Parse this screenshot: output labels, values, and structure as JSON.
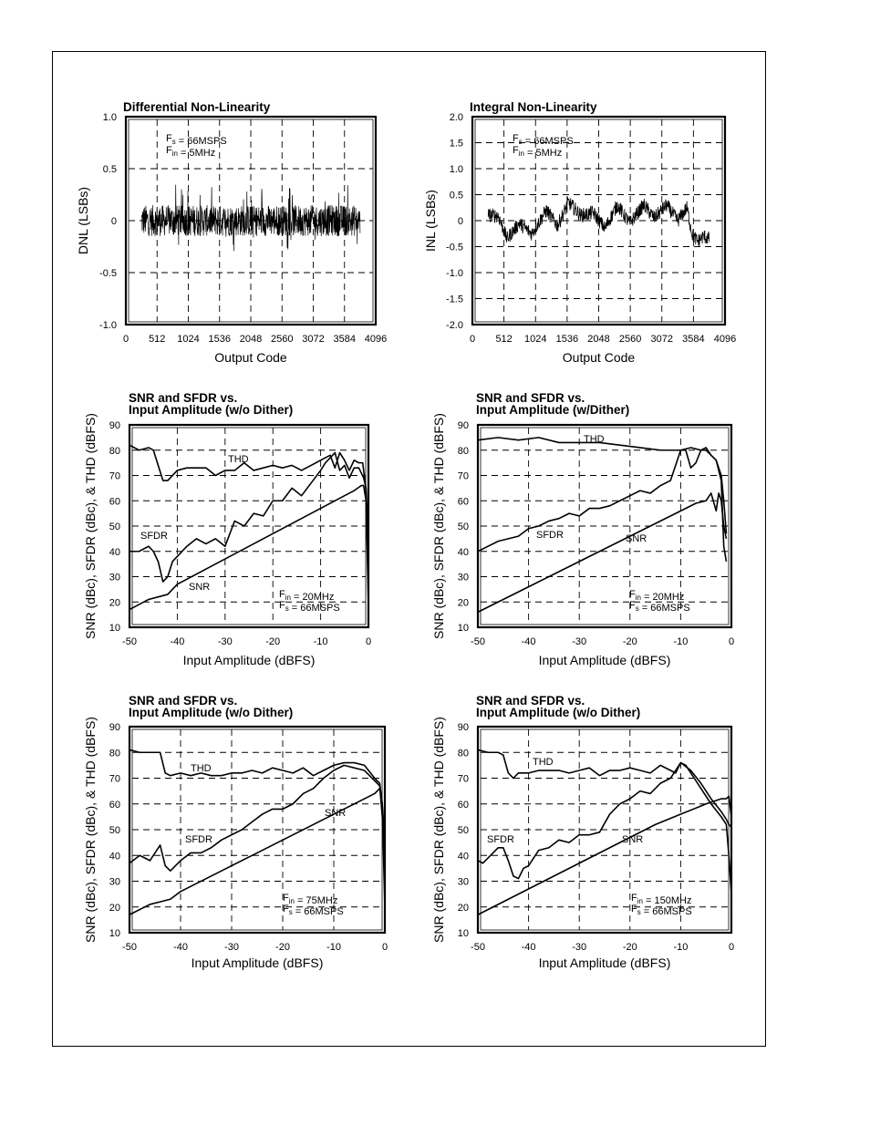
{
  "chart_data": [
    {
      "type": "line",
      "title": "Differential Non-Linearity",
      "xlabel": "Output Code",
      "ylabel": "DNL (LSBs)",
      "xlim": [
        0,
        4096
      ],
      "ylim": [
        -1.0,
        1.0
      ],
      "xticks": [
        "0",
        "512",
        "1024",
        "1536",
        "2048",
        "2560",
        "3072",
        "3584",
        "4096"
      ],
      "yticks": [
        "1.0",
        "0.5",
        "0",
        "-0.5",
        "-1.0"
      ],
      "annotations": [
        "F<sub>s</sub> = 66MSPS",
        "F<sub>in</sub> = 5MHz"
      ],
      "grid": true,
      "series": [
        {
          "style": "noise",
          "x_range": [
            256,
            3840
          ],
          "center": 0,
          "band": [
            -0.15,
            0.15
          ],
          "peak": [
            -0.3,
            0.35
          ]
        }
      ]
    },
    {
      "type": "line",
      "title": "Integral Non-Linearity",
      "xlabel": "Output Code",
      "ylabel": "INL (LSBs)",
      "xlim": [
        0,
        4096
      ],
      "ylim": [
        -2.0,
        2.0
      ],
      "xticks": [
        "0",
        "512",
        "1024",
        "1536",
        "2048",
        "2560",
        "3072",
        "3584",
        "4096"
      ],
      "yticks": [
        "2.0",
        "1.5",
        "1.0",
        "0.5",
        "0",
        "-0.5",
        "-1.0",
        "-1.5",
        "-2.0"
      ],
      "annotations": [
        "F<sub>s</sub> = 66MSPS",
        "F<sub>in</sub> = 5MHz"
      ],
      "grid": true,
      "series": [
        {
          "style": "noisy",
          "x": [
            256,
            420,
            560,
            760,
            960,
            1200,
            1380,
            1560,
            1760,
            1960,
            2150,
            2350,
            2550,
            2780,
            2950,
            3150,
            3330,
            3480,
            3560,
            3650,
            3750,
            3840
          ],
          "y": [
            0.1,
            0.1,
            -0.35,
            -0.05,
            -0.25,
            0.2,
            -0.1,
            0.35,
            0.1,
            0.15,
            -0.15,
            0.3,
            -0.05,
            0.3,
            0.05,
            0.3,
            0.0,
            0.25,
            -0.25,
            -0.4,
            -0.3,
            -0.35
          ]
        }
      ]
    },
    {
      "type": "line",
      "title": "SNR and SFDR vs.\nInput Amplitude (w/o Dither)",
      "xlabel": "Input Amplitude (dBFS)",
      "ylabel": "SNR (dBc), SFDR (dBc), & THD (dBFS)",
      "xlim": [
        -50,
        0
      ],
      "ylim": [
        10,
        90
      ],
      "xticks": [
        "-50",
        "-40",
        "-30",
        "-20",
        "-10",
        "0"
      ],
      "yticks": [
        "90",
        "80",
        "70",
        "60",
        "50",
        "40",
        "30",
        "20",
        "10"
      ],
      "annotations": [
        "F<sub>in</sub> = 20MHz",
        "F<sub>s</sub> = 66MSPS"
      ],
      "grid": true,
      "series": [
        {
          "name": "THD",
          "x": [
            -50,
            -48,
            -46,
            -45,
            -44,
            -43,
            -42,
            -40,
            -38,
            -36,
            -34,
            -32,
            -30,
            -28,
            -26,
            -24,
            -22,
            -20,
            -18,
            -16,
            -14,
            -12,
            -10,
            -8,
            -7,
            -6,
            -5,
            -4,
            -3,
            -2,
            -1.2,
            -0.6,
            -0.3,
            0
          ],
          "y": [
            82,
            80,
            81,
            80,
            74,
            68,
            68,
            72,
            73,
            73,
            73,
            70,
            72,
            72,
            75,
            72,
            73,
            74,
            73,
            74,
            72,
            74,
            76,
            78,
            73,
            79,
            76,
            72,
            76,
            75,
            75,
            66,
            55,
            40
          ]
        },
        {
          "name": "SFDR",
          "x": [
            -50,
            -48,
            -46,
            -45,
            -44,
            -43,
            -42,
            -41,
            -40,
            -38,
            -36,
            -34,
            -32,
            -30,
            -28,
            -26,
            -24,
            -22,
            -20,
            -18,
            -16,
            -14,
            -12,
            -10,
            -9,
            -8,
            -7,
            -6,
            -5,
            -4,
            -3,
            -2,
            -1,
            -0.5,
            0
          ],
          "y": [
            40,
            40,
            42,
            40,
            36,
            28,
            30,
            36,
            38,
            42,
            45,
            43,
            45,
            42,
            52,
            50,
            55,
            54,
            60,
            60,
            65,
            62,
            67,
            72,
            75,
            77,
            79,
            72,
            74,
            69,
            73,
            73,
            69,
            65,
            40
          ]
        },
        {
          "name": "SNR",
          "x": [
            -50,
            -46,
            -44,
            -42,
            -40,
            -35,
            -30,
            -25,
            -20,
            -15,
            -10,
            -5,
            -3,
            -1.5,
            -1,
            -0.5,
            -0.2,
            0
          ],
          "y": [
            17,
            21,
            22,
            23,
            27,
            32,
            37,
            42,
            47,
            52,
            57,
            62,
            64,
            66,
            66,
            60,
            35,
            18
          ]
        }
      ]
    },
    {
      "type": "line",
      "title": "SNR and SFDR vs.\nInput Amplitude (w/Dither)",
      "xlabel": "Input Amplitude (dBFS)",
      "ylabel": "SNR (dBc), SFDR (dBc), & THD (dBFS)",
      "xlim": [
        -50,
        0
      ],
      "ylim": [
        10,
        90
      ],
      "xticks": [
        "-50",
        "-40",
        "-30",
        "-20",
        "-10",
        "0"
      ],
      "yticks": [
        "90",
        "80",
        "70",
        "60",
        "50",
        "40",
        "30",
        "20",
        "10"
      ],
      "annotations": [
        "F<sub>in</sub> = 20MHz",
        "F<sub>s</sub> = 66MSPS"
      ],
      "grid": true,
      "series": [
        {
          "name": "THD",
          "x": [
            -50,
            -46,
            -42,
            -38,
            -34,
            -30,
            -26,
            -22,
            -18,
            -14,
            -10,
            -8,
            -6,
            -5,
            -4,
            -3,
            -2,
            -1.5,
            -1
          ],
          "y": [
            84,
            85,
            84,
            85,
            83,
            83,
            83,
            82,
            81,
            80,
            80,
            81,
            80,
            80,
            78,
            76,
            70,
            60,
            47
          ]
        },
        {
          "name": "SFDR",
          "x": [
            -50,
            -48,
            -46,
            -44,
            -42,
            -40,
            -38,
            -36,
            -34,
            -32,
            -30,
            -28,
            -26,
            -24,
            -22,
            -20,
            -18,
            -16,
            -14,
            -12,
            -10,
            -9,
            -8,
            -7,
            -6,
            -5,
            -4,
            -3,
            -2,
            -1.5,
            -1
          ],
          "y": [
            40,
            42,
            44,
            45,
            46,
            49,
            50,
            52,
            53,
            55,
            54,
            57,
            57,
            58,
            60,
            62,
            64,
            63,
            66,
            68,
            80,
            80,
            73,
            75,
            80,
            81,
            78,
            76,
            68,
            42,
            36
          ]
        },
        {
          "name": "SNR",
          "x": [
            -50,
            -45,
            -40,
            -35,
            -30,
            -25,
            -20,
            -15,
            -10,
            -7,
            -5,
            -4,
            -3,
            -2.5,
            -2,
            -1.5,
            -1
          ],
          "y": [
            16,
            21,
            26,
            31,
            36,
            41,
            46,
            51,
            56,
            59,
            60,
            63,
            56,
            63,
            60,
            50,
            45
          ]
        }
      ]
    },
    {
      "type": "line",
      "title": "SNR and SFDR vs.\nInput Amplitude (w/o Dither)",
      "xlabel": "Input Amplitude (dBFS)",
      "ylabel": "SNR (dBc), SFDR (dBc), & THD (dBFS)",
      "xlim": [
        -50,
        0
      ],
      "ylim": [
        10,
        90
      ],
      "xticks": [
        "-50",
        "-40",
        "-30",
        "-20",
        "-10",
        "0"
      ],
      "yticks": [
        "90",
        "80",
        "70",
        "60",
        "50",
        "40",
        "30",
        "20",
        "10"
      ],
      "annotations": [
        "F<sub>in</sub> = 75MHz",
        "F<sub>s</sub> = 66MSPS"
      ],
      "grid": true,
      "series": [
        {
          "name": "THD",
          "x": [
            -50,
            -48,
            -46,
            -44,
            -43,
            -42,
            -40,
            -38,
            -36,
            -34,
            -32,
            -30,
            -28,
            -26,
            -24,
            -22,
            -20,
            -18,
            -16,
            -14,
            -12,
            -10,
            -8,
            -6,
            -4,
            -2,
            -1,
            -0.5,
            0
          ],
          "y": [
            81,
            80,
            80,
            80,
            72,
            71,
            72,
            71,
            72,
            71,
            71,
            72,
            72,
            73,
            72,
            74,
            73,
            72,
            74,
            71,
            73,
            75,
            76,
            76,
            75,
            70,
            68,
            60,
            45
          ]
        },
        {
          "name": "SFDR",
          "x": [
            -50,
            -48,
            -46,
            -44,
            -43,
            -42,
            -40,
            -38,
            -36,
            -34,
            -32,
            -30,
            -28,
            -26,
            -24,
            -22,
            -20,
            -18,
            -16,
            -14,
            -12,
            -10,
            -8,
            -6,
            -4,
            -2,
            -1,
            -0.5,
            0
          ],
          "y": [
            37,
            40,
            38,
            44,
            36,
            34,
            38,
            41,
            41,
            43,
            46,
            48,
            50,
            53,
            56,
            58,
            58,
            60,
            64,
            66,
            70,
            73,
            75,
            74,
            73,
            69,
            67,
            55,
            35
          ]
        },
        {
          "name": "SNR",
          "x": [
            -50,
            -46,
            -44,
            -42,
            -40,
            -35,
            -30,
            -25,
            -20,
            -15,
            -10,
            -5,
            -2,
            -1,
            -0.5,
            -0.2,
            0
          ],
          "y": [
            17,
            21,
            22,
            23,
            26,
            31,
            36,
            41,
            46,
            51,
            56,
            61,
            64,
            66,
            60,
            35,
            20
          ]
        }
      ]
    },
    {
      "type": "line",
      "title": "SNR and SFDR vs.\nInput Amplitude (w/o Dither)",
      "xlabel": "Input Amplitude (dBFS)",
      "ylabel": "SNR (dBc), SFDR (dBc), & THD (dBFS)",
      "xlim": [
        -50,
        0
      ],
      "ylim": [
        10,
        90
      ],
      "xticks": [
        "-50",
        "-40",
        "-30",
        "-20",
        "-10",
        "0"
      ],
      "yticks": [
        "90",
        "80",
        "70",
        "60",
        "50",
        "40",
        "30",
        "20",
        "10"
      ],
      "annotations": [
        "F<sub>in</sub> = 150MHz",
        "F<sub>s</sub> = 66MSPS"
      ],
      "grid": true,
      "series": [
        {
          "name": "THD",
          "x": [
            -50,
            -48,
            -46,
            -45,
            -44,
            -43,
            -42,
            -40,
            -38,
            -36,
            -34,
            -32,
            -30,
            -28,
            -26,
            -24,
            -22,
            -20,
            -18,
            -16,
            -14,
            -12,
            -11,
            -10,
            -8,
            -6,
            -4,
            -2,
            -1,
            -0.5,
            0
          ],
          "y": [
            81,
            80,
            80,
            79,
            72,
            70,
            72,
            72,
            73,
            73,
            73,
            72,
            73,
            74,
            71,
            73,
            73,
            74,
            73,
            72,
            75,
            73,
            72,
            76,
            73,
            68,
            62,
            57,
            54,
            52,
            51
          ]
        },
        {
          "name": "SFDR",
          "x": [
            -50,
            -49,
            -48,
            -46,
            -45,
            -44,
            -43,
            -42,
            -41,
            -40,
            -38,
            -36,
            -34,
            -32,
            -30,
            -28,
            -26,
            -24,
            -22,
            -20,
            -18,
            -16,
            -14,
            -12,
            -11,
            -10,
            -9,
            -8,
            -6,
            -4,
            -2,
            -1,
            -0.5,
            0
          ],
          "y": [
            38,
            37,
            39,
            43,
            43,
            38,
            32,
            31,
            35,
            36,
            42,
            43,
            46,
            45,
            48,
            48,
            49,
            56,
            60,
            62,
            65,
            64,
            68,
            70,
            73,
            76,
            75,
            72,
            66,
            60,
            55,
            52,
            40,
            25
          ]
        },
        {
          "name": "SNR",
          "x": [
            -50,
            -45,
            -40,
            -35,
            -30,
            -25,
            -20,
            -15,
            -10,
            -5,
            -2,
            -1,
            -0.5,
            0
          ],
          "y": [
            17,
            22,
            27,
            32,
            37,
            42,
            47,
            52,
            56,
            60,
            62,
            62,
            63,
            55
          ]
        }
      ]
    }
  ]
}
